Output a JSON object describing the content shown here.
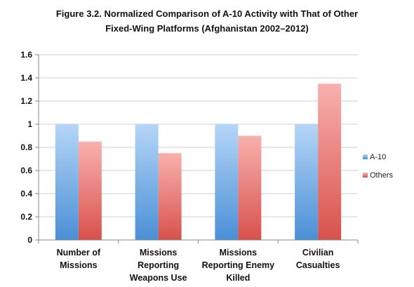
{
  "title_line1": "Figure 3.2. Normalized Comparison of A-10 Activity with That of Other",
  "title_line2": "Fixed-Wing Platforms (Afghanistan 2002–2012)",
  "colors": {
    "a10": "#4a90d9",
    "a10_light": "#a8cdf5",
    "others": "#d9534f",
    "others_light": "#f7a9a8",
    "grid": "#cfcfcf",
    "axis": "#888888"
  },
  "chart_data": {
    "type": "bar",
    "title": "Figure 3.2. Normalized Comparison of A-10 Activity with That of Other Fixed-Wing Platforms (Afghanistan 2002–2012)",
    "categories": [
      [
        "Number of",
        "Missions"
      ],
      [
        "Missions",
        "Reporting",
        "Weapons Use"
      ],
      [
        "Missions",
        "Reporting Enemy",
        "Killed"
      ],
      [
        "Civilian",
        "Casualties"
      ]
    ],
    "series": [
      {
        "name": "A-10",
        "values": [
          1,
          1,
          1,
          1
        ]
      },
      {
        "name": "Others",
        "values": [
          0.85,
          0.75,
          0.9,
          1.35
        ]
      }
    ],
    "ylim": [
      0,
      1.6
    ],
    "yticks": [
      "0",
      "0.2",
      "0.4",
      "0.6",
      "0.8",
      "1",
      "1.2",
      "1.4",
      "1.6"
    ],
    "ytick_values": [
      0,
      0.2,
      0.4,
      0.6,
      0.8,
      1,
      1.2,
      1.4,
      1.6
    ],
    "grid": true,
    "legend_position": "right"
  }
}
